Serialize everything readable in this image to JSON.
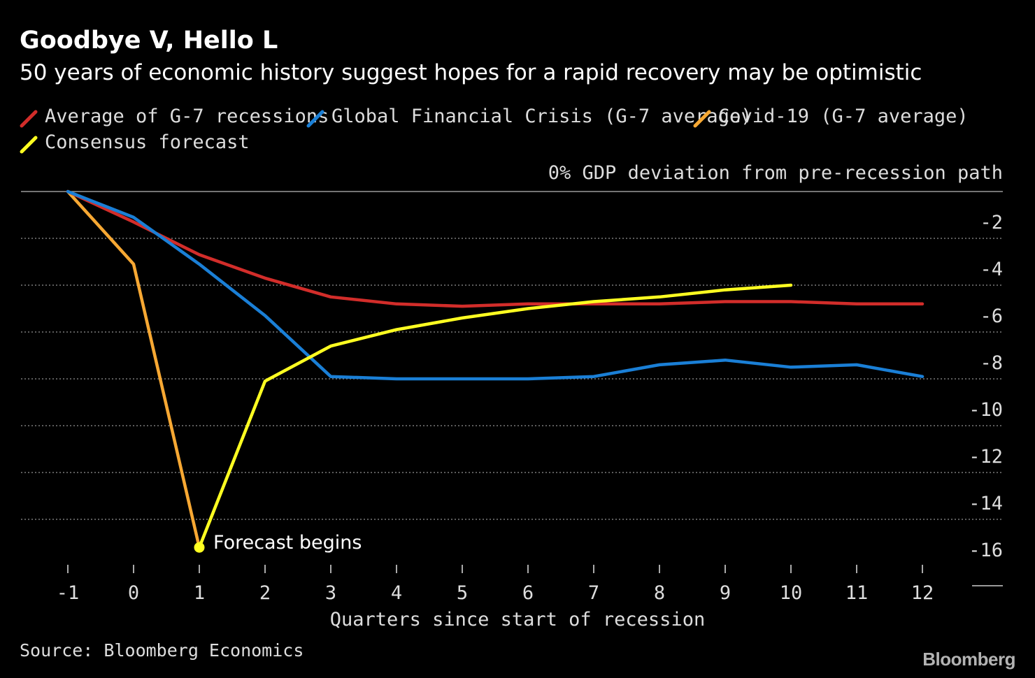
{
  "header": {
    "title": "Goodbye V, Hello L",
    "subtitle": "50 years of economic history suggest hopes for a rapid recovery may be optimistic"
  },
  "legend": [
    {
      "label": "Average of G-7 recessions",
      "color": "#d22d2a"
    },
    {
      "label": "Global Financial Crisis (G-7 average)",
      "color": "#1a7fd6"
    },
    {
      "label": "Covid-19 (G-7 average)",
      "color": "#f7a833"
    },
    {
      "label": "Consensus forecast",
      "color": "#ffff21"
    }
  ],
  "footer": {
    "source": "Source: Bloomberg Economics",
    "brand": "Bloomberg"
  },
  "chart_data": {
    "type": "line",
    "title": "Goodbye V, Hello L",
    "subtitle": "50 years of economic history suggest hopes for a rapid recovery may be optimistic",
    "xlabel": "Quarters since start of recession",
    "ylabel": "0% GDP deviation from pre-recession path",
    "xlim": [
      -1,
      12
    ],
    "ylim": [
      -16,
      0
    ],
    "x_ticks": [
      "-1",
      "0",
      "1",
      "2",
      "3",
      "4",
      "5",
      "6",
      "7",
      "8",
      "9",
      "10",
      "11",
      "12"
    ],
    "y_ticks": [
      "-2",
      "-4",
      "-6",
      "-8",
      "-10",
      "-12",
      "-14",
      "-16"
    ],
    "grid": true,
    "legend_position": "top-left",
    "series": [
      {
        "name": "Average of G-7 recessions",
        "color": "#d22d2a",
        "x": [
          -1,
          0,
          1,
          2,
          3,
          4,
          5,
          6,
          7,
          8,
          9,
          10,
          11,
          12
        ],
        "y": [
          0,
          -1.3,
          -2.7,
          -3.7,
          -4.5,
          -4.8,
          -4.9,
          -4.8,
          -4.8,
          -4.8,
          -4.7,
          -4.7,
          -4.8,
          -4.8
        ]
      },
      {
        "name": "Global Financial Crisis (G-7 average)",
        "color": "#1a7fd6",
        "x": [
          -1,
          0,
          1,
          2,
          3,
          4,
          5,
          6,
          7,
          8,
          9,
          10,
          11,
          12
        ],
        "y": [
          0,
          -1.1,
          -3.1,
          -5.3,
          -7.9,
          -8.0,
          -8.0,
          -8.0,
          -7.9,
          -7.4,
          -7.2,
          -7.5,
          -7.4,
          -7.9
        ]
      },
      {
        "name": "Covid-19 (G-7 average)",
        "color": "#f7a833",
        "x": [
          -1,
          0,
          1
        ],
        "y": [
          0,
          -3.1,
          -15.2
        ]
      },
      {
        "name": "Consensus forecast",
        "color": "#ffff21",
        "x": [
          1,
          2,
          3,
          4,
          5,
          6,
          7,
          8,
          9,
          10
        ],
        "y": [
          -15.2,
          -8.1,
          -6.6,
          -5.9,
          -5.4,
          -5.0,
          -4.7,
          -4.5,
          -4.2,
          -4.0
        ]
      }
    ],
    "annotation": {
      "text": "Forecast begins",
      "x": 1,
      "y": -15.2
    }
  }
}
